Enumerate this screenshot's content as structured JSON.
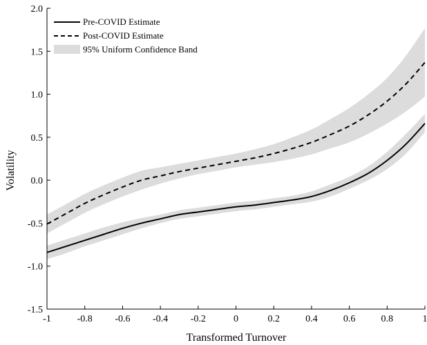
{
  "chart_data": {
    "type": "line",
    "title": "",
    "xlabel": "Transformed Turnover",
    "ylabel": "Volatility",
    "xlim": [
      -1,
      1
    ],
    "ylim": [
      -1.5,
      2.0
    ],
    "xticks": [
      -1,
      -0.8,
      -0.6,
      -0.4,
      -0.2,
      0,
      0.2,
      0.4,
      0.6,
      0.8,
      1
    ],
    "xtick_labels": [
      "-1",
      "-0.8",
      "-0.6",
      "-0.4",
      "-0.2",
      "0",
      "0.2",
      "0.4",
      "0.6",
      "0.8",
      "1"
    ],
    "yticks": [
      -1.5,
      -1.0,
      -0.5,
      0.0,
      0.5,
      1.0,
      1.5,
      2.0
    ],
    "ytick_labels": [
      "-1.5",
      "-1.0",
      "-0.5",
      "0.0",
      "0.5",
      "1.0",
      "1.5",
      "2.0"
    ],
    "grid": false,
    "legend_position": "top-left",
    "legend": [
      {
        "label": "Pre-COVID Estimate",
        "style": "solid"
      },
      {
        "label": "Post-COVID Estimate",
        "style": "dashed"
      },
      {
        "label": "95% Uniform Confidence Band",
        "style": "band"
      }
    ],
    "x": [
      -1,
      -0.9,
      -0.8,
      -0.7,
      -0.6,
      -0.5,
      -0.4,
      -0.3,
      -0.2,
      -0.1,
      0,
      0.1,
      0.2,
      0.3,
      0.4,
      0.5,
      0.6,
      0.7,
      0.8,
      0.9,
      1
    ],
    "series": [
      {
        "name": "Pre-COVID Estimate",
        "style": "solid",
        "values": [
          -0.84,
          -0.77,
          -0.7,
          -0.63,
          -0.56,
          -0.5,
          -0.45,
          -0.4,
          -0.37,
          -0.34,
          -0.31,
          -0.29,
          -0.26,
          -0.23,
          -0.19,
          -0.12,
          -0.03,
          0.08,
          0.23,
          0.42,
          0.66
        ],
        "band_lower": [
          -0.92,
          -0.85,
          -0.77,
          -0.7,
          -0.63,
          -0.56,
          -0.5,
          -0.45,
          -0.42,
          -0.39,
          -0.36,
          -0.34,
          -0.31,
          -0.28,
          -0.25,
          -0.19,
          -0.1,
          0.0,
          0.13,
          0.31,
          0.56
        ],
        "band_upper": [
          -0.76,
          -0.69,
          -0.62,
          -0.55,
          -0.49,
          -0.44,
          -0.4,
          -0.35,
          -0.32,
          -0.29,
          -0.26,
          -0.24,
          -0.21,
          -0.18,
          -0.13,
          -0.05,
          0.04,
          0.16,
          0.33,
          0.54,
          0.77
        ]
      },
      {
        "name": "Post-COVID Estimate",
        "style": "dashed",
        "values": [
          -0.51,
          -0.39,
          -0.27,
          -0.17,
          -0.08,
          0.0,
          0.05,
          0.1,
          0.14,
          0.18,
          0.22,
          0.26,
          0.31,
          0.37,
          0.44,
          0.53,
          0.63,
          0.76,
          0.92,
          1.12,
          1.37
        ],
        "band_lower": [
          -0.62,
          -0.5,
          -0.38,
          -0.28,
          -0.19,
          -0.11,
          -0.04,
          0.02,
          0.07,
          0.11,
          0.15,
          0.18,
          0.21,
          0.25,
          0.3,
          0.37,
          0.44,
          0.54,
          0.66,
          0.8,
          0.97
        ],
        "band_upper": [
          -0.4,
          -0.28,
          -0.16,
          -0.06,
          0.03,
          0.11,
          0.15,
          0.19,
          0.23,
          0.27,
          0.31,
          0.36,
          0.42,
          0.5,
          0.59,
          0.71,
          0.84,
          1.0,
          1.19,
          1.45,
          1.77
        ]
      }
    ],
    "colors": {
      "line": "#000000",
      "band": "#dcdcdd",
      "axes": "#000000",
      "background": "#ffffff"
    }
  }
}
